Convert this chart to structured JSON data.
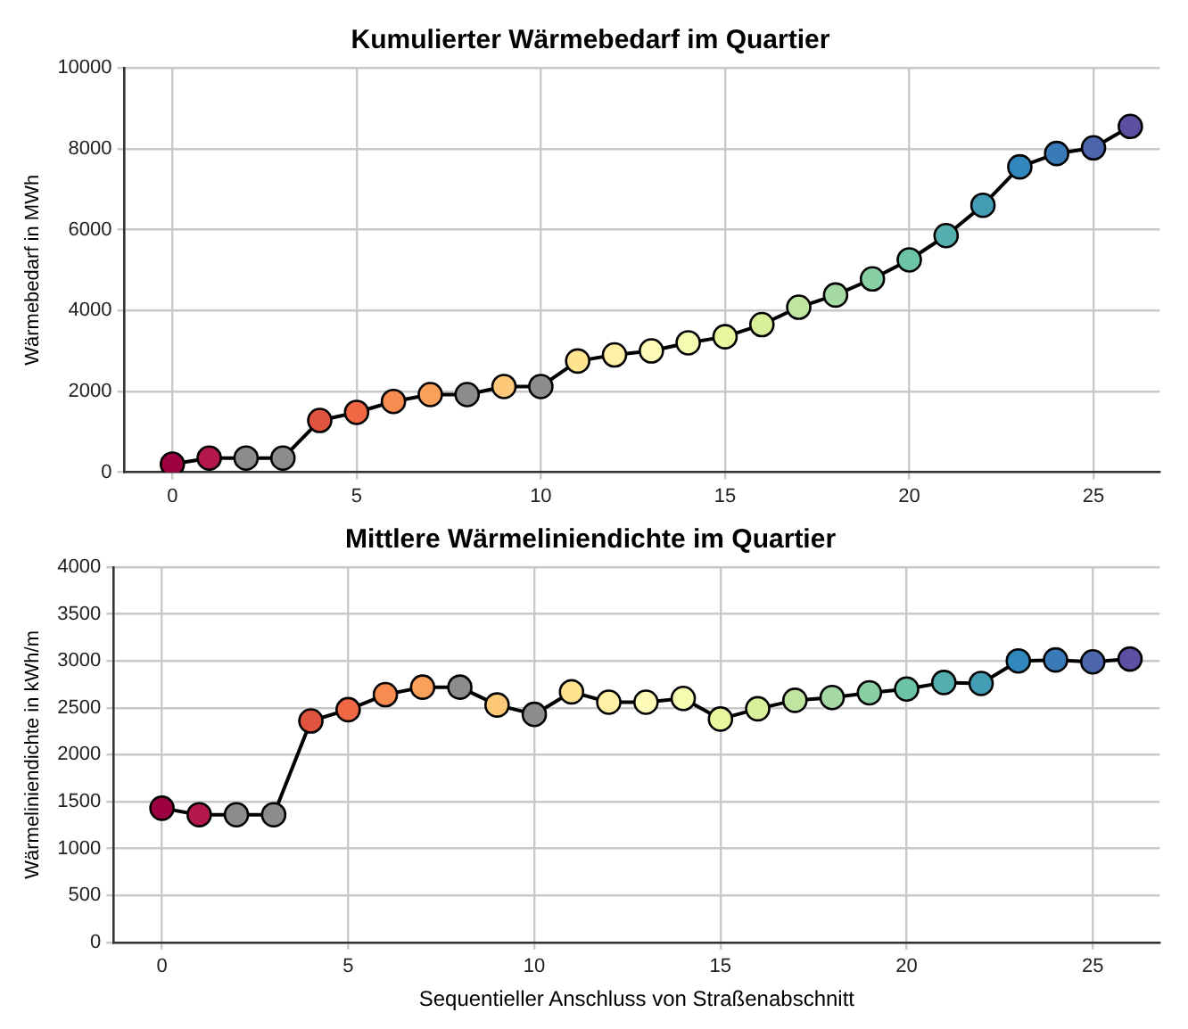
{
  "chart_data": [
    {
      "type": "line",
      "title": "Kumulierter Wärmebedarf im Quartier",
      "ylabel": "Wärmebedarf in MWh",
      "x": [
        0,
        1,
        2,
        3,
        4,
        5,
        6,
        7,
        8,
        9,
        10,
        11,
        12,
        13,
        14,
        15,
        16,
        17,
        18,
        19,
        20,
        21,
        22,
        23,
        24,
        25,
        26
      ],
      "series": [
        {
          "color": "#000000",
          "colors": [
            "#9e0142",
            "#b2184a",
            "#8c8c8c",
            "#8c8c8c",
            "#e0533e",
            "#f06744",
            "#f88c50",
            "#fba05b",
            "#8c8c8c",
            "#fdc878",
            "#8c8c8c",
            "#fee391",
            "#fff0a6",
            "#fffbb8",
            "#f6fbb2",
            "#eaf79d",
            "#d9f09a",
            "#bfe5a0",
            "#a4d9a4",
            "#88cfa4",
            "#6cc3a5",
            "#54aead",
            "#449bb4",
            "#3288bd",
            "#3a7ab8",
            "#4c66ad",
            "#5e4fa2"
          ],
          "values": [
            200,
            350,
            350,
            350,
            1280,
            1480,
            1750,
            1920,
            1920,
            2120,
            2120,
            2750,
            2900,
            3000,
            3200,
            3350,
            3650,
            4080,
            4380,
            4780,
            5250,
            5850,
            6600,
            7550,
            7880,
            8020,
            8550
          ]
        }
      ],
      "xlim": [
        -1.3,
        26.8
      ],
      "xticks": [
        0,
        5,
        10,
        15,
        20,
        25
      ],
      "ylim": [
        0,
        10000
      ],
      "yticks": [
        0,
        2000,
        4000,
        6000,
        8000,
        10000
      ],
      "grid": true,
      "marker": "circle",
      "line_style": "solid"
    },
    {
      "type": "line",
      "title": "Mittlere Wärmeliniendichte im Quartier",
      "xlabel": "Sequentieller Anschluss von Straßenabschnitt",
      "ylabel": "Wärmeliniendichte in kWh/m",
      "x": [
        0,
        1,
        2,
        3,
        4,
        5,
        6,
        7,
        8,
        9,
        10,
        11,
        12,
        13,
        14,
        15,
        16,
        17,
        18,
        19,
        20,
        21,
        22,
        23,
        24,
        25,
        26
      ],
      "series": [
        {
          "color": "#000000",
          "colors": [
            "#9e0142",
            "#b2184a",
            "#8c8c8c",
            "#8c8c8c",
            "#e0533e",
            "#f06744",
            "#f88c50",
            "#fba05b",
            "#8c8c8c",
            "#fdc878",
            "#8c8c8c",
            "#fee391",
            "#fff0a6",
            "#fffbb8",
            "#f6fbb2",
            "#eaf79d",
            "#d9f09a",
            "#bfe5a0",
            "#a4d9a4",
            "#88cfa4",
            "#6cc3a5",
            "#54aead",
            "#449bb4",
            "#3288bd",
            "#3a7ab8",
            "#4c66ad",
            "#5e4fa2"
          ],
          "values": [
            1430,
            1360,
            1360,
            1360,
            2360,
            2480,
            2640,
            2720,
            2720,
            2530,
            2430,
            2670,
            2560,
            2560,
            2600,
            2380,
            2490,
            2580,
            2610,
            2660,
            2700,
            2770,
            2760,
            3000,
            3010,
            2990,
            3020
          ]
        }
      ],
      "xlim": [
        -1.3,
        26.8
      ],
      "xticks": [
        0,
        5,
        10,
        15,
        20,
        25
      ],
      "ylim": [
        0,
        4000
      ],
      "yticks": [
        0,
        500,
        1000,
        1500,
        2000,
        2500,
        3000,
        3500,
        4000
      ],
      "grid": true,
      "marker": "circle",
      "line_style": "solid"
    }
  ]
}
